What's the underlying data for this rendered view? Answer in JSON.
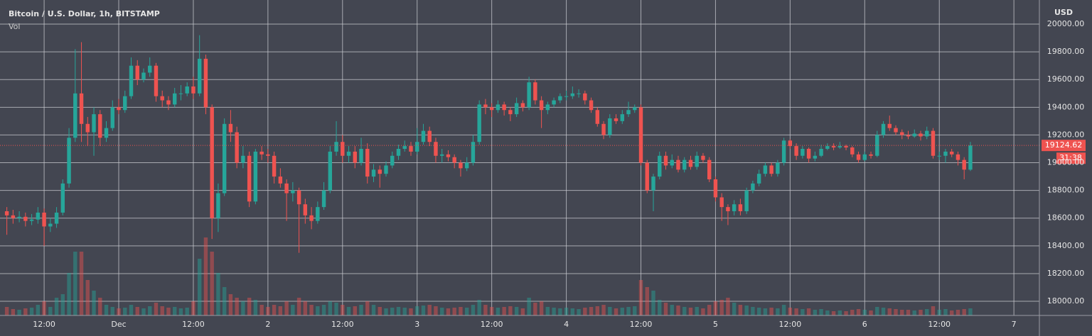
{
  "chart_data": {
    "type": "candlestick",
    "title": "Bitcoin / U.S. Dollar, 1h, BITSTAMP",
    "volume_label": "Vol",
    "currency": "USD",
    "up_color": "#26a69a",
    "down_color": "#ef5350",
    "grid": true,
    "last_price": 19124.62,
    "countdown": "31:38",
    "ylim": [
      17898,
      20174
    ],
    "yticks": [
      {
        "value": 18000,
        "label": "18000.00"
      },
      {
        "value": 18200,
        "label": "18200.00"
      },
      {
        "value": 18400,
        "label": "18400.00"
      },
      {
        "value": 18600,
        "label": "18600.00"
      },
      {
        "value": 18800,
        "label": "18800.00"
      },
      {
        "value": 19000,
        "label": "19000.00"
      },
      {
        "value": 19200,
        "label": "19200.00"
      },
      {
        "value": 19400,
        "label": "19400.00"
      },
      {
        "value": 19600,
        "label": "19600.00"
      },
      {
        "value": 19800,
        "label": "19800.00"
      },
      {
        "value": 20000,
        "label": "20000.00"
      }
    ],
    "xlim": [
      -19.1,
      148.1
    ],
    "xticks": [
      {
        "value": -12,
        "label": "12:00"
      },
      {
        "value": 0,
        "label": "Dec"
      },
      {
        "value": 12,
        "label": "12:00"
      },
      {
        "value": 24,
        "label": "2"
      },
      {
        "value": 36,
        "label": "12:00"
      },
      {
        "value": 48,
        "label": "3"
      },
      {
        "value": 60,
        "label": "12:00"
      },
      {
        "value": 72,
        "label": "4"
      },
      {
        "value": 84,
        "label": "12:00"
      },
      {
        "value": 96,
        "label": "5"
      },
      {
        "value": 108,
        "label": "12:00"
      },
      {
        "value": 120,
        "label": "6"
      },
      {
        "value": 132,
        "label": "12:00"
      },
      {
        "value": 144,
        "label": "7"
      }
    ],
    "x": [
      -18,
      -17,
      -16,
      -15,
      -14,
      -13,
      -12,
      -11,
      -10,
      -9,
      -8,
      -7,
      -6,
      -5,
      -4,
      -3,
      -2,
      -1,
      0,
      1,
      2,
      3,
      4,
      5,
      6,
      7,
      8,
      9,
      10,
      11,
      12,
      13,
      14,
      15,
      16,
      17,
      18,
      19,
      20,
      21,
      22,
      23,
      24,
      25,
      26,
      27,
      28,
      29,
      30,
      31,
      32,
      33,
      34,
      35,
      36,
      37,
      38,
      39,
      40,
      41,
      42,
      43,
      44,
      45,
      46,
      47,
      48,
      49,
      50,
      51,
      52,
      53,
      54,
      55,
      56,
      57,
      58,
      59,
      60,
      61,
      62,
      63,
      64,
      65,
      66,
      67,
      68,
      69,
      70,
      71,
      72,
      73,
      74,
      75,
      76,
      77,
      78,
      79,
      80,
      81,
      82,
      83,
      84,
      85,
      86,
      87,
      88,
      89,
      90,
      91,
      92,
      93,
      94,
      95,
      96,
      97,
      98,
      99,
      100,
      101,
      102,
      103,
      104,
      105,
      106,
      107,
      108,
      109,
      110,
      111,
      112,
      113,
      114,
      115,
      116,
      117,
      118,
      119,
      120,
      121,
      122,
      123,
      124,
      125,
      126,
      127,
      128,
      129,
      130,
      131,
      132,
      133,
      134,
      135,
      136,
      137
    ],
    "candles": [
      [
        18650,
        18680,
        18480,
        18620,
        120
      ],
      [
        18620,
        18660,
        18560,
        18600,
        90
      ],
      [
        18600,
        18650,
        18570,
        18610,
        80
      ],
      [
        18610,
        18640,
        18540,
        18580,
        100
      ],
      [
        18580,
        18630,
        18550,
        18590,
        110
      ],
      [
        18590,
        18680,
        18560,
        18640,
        150
      ],
      [
        18640,
        18670,
        18400,
        18540,
        200
      ],
      [
        18540,
        18600,
        18500,
        18560,
        120
      ],
      [
        18560,
        18680,
        18530,
        18640,
        250
      ],
      [
        18640,
        18880,
        18620,
        18850,
        300
      ],
      [
        18850,
        19250,
        18820,
        19180,
        600
      ],
      [
        19180,
        19820,
        19150,
        19500,
        900
      ],
      [
        19500,
        19870,
        19150,
        19280,
        900
      ],
      [
        19280,
        19330,
        19120,
        19220,
        500
      ],
      [
        19220,
        19400,
        19050,
        19350,
        350
      ],
      [
        19350,
        19380,
        19120,
        19180,
        250
      ],
      [
        19180,
        19300,
        19150,
        19250,
        150
      ],
      [
        19250,
        19450,
        19230,
        19400,
        120
      ],
      [
        19400,
        19460,
        19350,
        19380,
        100
      ],
      [
        19380,
        19520,
        19360,
        19480,
        110
      ],
      [
        19480,
        19760,
        19460,
        19700,
        150
      ],
      [
        19700,
        19740,
        19560,
        19600,
        120
      ],
      [
        19600,
        19680,
        19580,
        19650,
        100
      ],
      [
        19650,
        19760,
        19620,
        19700,
        130
      ],
      [
        19700,
        19720,
        19440,
        19480,
        180
      ],
      [
        19480,
        19520,
        19400,
        19450,
        130
      ],
      [
        19450,
        19480,
        19380,
        19420,
        110
      ],
      [
        19420,
        19540,
        19400,
        19500,
        120
      ],
      [
        19500,
        19560,
        19450,
        19500,
        100
      ],
      [
        19500,
        19580,
        19480,
        19550,
        110
      ],
      [
        19550,
        19620,
        19460,
        19500,
        200
      ],
      [
        19500,
        19920,
        19480,
        19750,
        800
      ],
      [
        19750,
        19780,
        19350,
        19400,
        1100
      ],
      [
        19400,
        19420,
        18450,
        18600,
        900
      ],
      [
        18600,
        18850,
        18500,
        18780,
        600
      ],
      [
        18780,
        19320,
        18760,
        19280,
        400
      ],
      [
        19280,
        19380,
        19150,
        19220,
        300
      ],
      [
        19220,
        19260,
        18960,
        19000,
        250
      ],
      [
        19000,
        19120,
        18960,
        19050,
        200
      ],
      [
        19050,
        19080,
        18680,
        18720,
        250
      ],
      [
        18720,
        19100,
        18700,
        19080,
        220
      ],
      [
        19080,
        19120,
        19020,
        19060,
        150
      ],
      [
        19060,
        19100,
        19000,
        19050,
        120
      ],
      [
        19050,
        19080,
        18850,
        18900,
        150
      ],
      [
        18900,
        18960,
        18820,
        18850,
        130
      ],
      [
        18850,
        18880,
        18580,
        18780,
        200
      ],
      [
        18780,
        18860,
        18720,
        18800,
        150
      ],
      [
        18800,
        18820,
        18350,
        18700,
        250
      ],
      [
        18700,
        18740,
        18560,
        18620,
        200
      ],
      [
        18620,
        18680,
        18520,
        18580,
        150
      ],
      [
        18580,
        18720,
        18560,
        18680,
        130
      ],
      [
        18680,
        18860,
        18660,
        18800,
        150
      ],
      [
        18800,
        19120,
        18780,
        19080,
        200
      ],
      [
        19080,
        19300,
        19050,
        19150,
        180
      ],
      [
        19150,
        19200,
        19000,
        19050,
        150
      ],
      [
        19050,
        19120,
        19000,
        19080,
        120
      ],
      [
        19080,
        19120,
        18960,
        19000,
        130
      ],
      [
        19000,
        19180,
        18980,
        19100,
        150
      ],
      [
        19100,
        19140,
        18850,
        18900,
        200
      ],
      [
        18900,
        18990,
        18860,
        18950,
        150
      ],
      [
        18950,
        18980,
        18820,
        18920,
        120
      ],
      [
        18920,
        19010,
        18900,
        18980,
        100
      ],
      [
        18980,
        19080,
        18960,
        19050,
        110
      ],
      [
        19050,
        19130,
        19020,
        19100,
        120
      ],
      [
        19100,
        19160,
        19080,
        19120,
        110
      ],
      [
        19120,
        19150,
        19050,
        19080,
        100
      ],
      [
        19080,
        19250,
        19060,
        19150,
        130
      ],
      [
        19150,
        19280,
        19130,
        19230,
        140
      ],
      [
        19230,
        19260,
        19120,
        19150,
        150
      ],
      [
        19150,
        19180,
        19000,
        19050,
        130
      ],
      [
        19050,
        19100,
        19000,
        19060,
        110
      ],
      [
        19060,
        19090,
        19010,
        19040,
        100
      ],
      [
        19040,
        19060,
        18960,
        19000,
        110
      ],
      [
        19000,
        19020,
        18900,
        18960,
        120
      ],
      [
        18960,
        19040,
        18940,
        19000,
        110
      ],
      [
        19000,
        19200,
        18980,
        19150,
        150
      ],
      [
        19150,
        19450,
        19130,
        19420,
        220
      ],
      [
        19420,
        19460,
        19350,
        19400,
        150
      ],
      [
        19400,
        19430,
        19330,
        19380,
        120
      ],
      [
        19380,
        19450,
        19360,
        19420,
        110
      ],
      [
        19420,
        19440,
        19340,
        19380,
        120
      ],
      [
        19380,
        19400,
        19300,
        19350,
        130
      ],
      [
        19350,
        19470,
        19330,
        19430,
        120
      ],
      [
        19430,
        19450,
        19370,
        19400,
        100
      ],
      [
        19400,
        19620,
        19380,
        19580,
        250
      ],
      [
        19580,
        19600,
        19420,
        19450,
        180
      ],
      [
        19450,
        19480,
        19250,
        19380,
        200
      ],
      [
        19380,
        19440,
        19350,
        19420,
        120
      ],
      [
        19420,
        19470,
        19400,
        19450,
        110
      ],
      [
        19450,
        19500,
        19430,
        19480,
        100
      ],
      [
        19480,
        19520,
        19450,
        19480,
        110
      ],
      [
        19480,
        19550,
        19460,
        19500,
        100
      ],
      [
        19500,
        19530,
        19470,
        19500,
        90
      ],
      [
        19500,
        19520,
        19420,
        19450,
        110
      ],
      [
        19450,
        19470,
        19360,
        19380,
        120
      ],
      [
        19380,
        19400,
        19260,
        19280,
        130
      ],
      [
        19280,
        19300,
        19170,
        19200,
        150
      ],
      [
        19200,
        19350,
        19180,
        19320,
        120
      ],
      [
        19320,
        19350,
        19280,
        19300,
        100
      ],
      [
        19300,
        19380,
        19280,
        19350,
        110
      ],
      [
        19350,
        19440,
        19330,
        19380,
        120
      ],
      [
        19380,
        19420,
        19360,
        19400,
        130
      ],
      [
        19400,
        19420,
        18980,
        19000,
        500
      ],
      [
        19000,
        19020,
        18780,
        18800,
        400
      ],
      [
        18800,
        18920,
        18650,
        18900,
        350
      ],
      [
        18900,
        19080,
        18880,
        19050,
        220
      ],
      [
        19050,
        19080,
        18950,
        18980,
        180
      ],
      [
        18980,
        19060,
        18960,
        19020,
        150
      ],
      [
        19020,
        19050,
        18930,
        18950,
        140
      ],
      [
        18950,
        19040,
        18930,
        19020,
        120
      ],
      [
        19020,
        19050,
        18950,
        18970,
        110
      ],
      [
        18970,
        19080,
        18950,
        19050,
        120
      ],
      [
        19050,
        19070,
        19000,
        19020,
        100
      ],
      [
        19020,
        19040,
        18860,
        18880,
        150
      ],
      [
        18880,
        18900,
        18720,
        18750,
        200
      ],
      [
        18750,
        18780,
        18580,
        18680,
        220
      ],
      [
        18680,
        18700,
        18550,
        18650,
        250
      ],
      [
        18650,
        18730,
        18620,
        18700,
        180
      ],
      [
        18700,
        18740,
        18620,
        18650,
        150
      ],
      [
        18650,
        18820,
        18630,
        18800,
        140
      ],
      [
        18800,
        18870,
        18780,
        18850,
        120
      ],
      [
        18850,
        18950,
        18830,
        18920,
        110
      ],
      [
        18920,
        19000,
        18900,
        18980,
        100
      ],
      [
        18980,
        19000,
        18900,
        18920,
        110
      ],
      [
        18920,
        19020,
        18900,
        19000,
        100
      ],
      [
        19000,
        19180,
        18980,
        19160,
        150
      ],
      [
        19160,
        19170,
        19100,
        19120,
        110
      ],
      [
        19120,
        19140,
        19020,
        19050,
        100
      ],
      [
        19050,
        19120,
        19030,
        19100,
        90
      ],
      [
        19100,
        19110,
        19000,
        19030,
        100
      ],
      [
        19030,
        19080,
        19010,
        19050,
        80
      ],
      [
        19050,
        19130,
        19040,
        19100,
        90
      ],
      [
        19100,
        19140,
        19090,
        19120,
        70
      ],
      [
        19120,
        19140,
        19090,
        19110,
        60
      ],
      [
        19110,
        19150,
        19100,
        19120,
        70
      ],
      [
        19120,
        19130,
        19090,
        19110,
        60
      ],
      [
        19110,
        19120,
        19040,
        19060,
        80
      ],
      [
        19060,
        19080,
        19000,
        19020,
        90
      ],
      [
        19020,
        19080,
        19010,
        19060,
        80
      ],
      [
        19060,
        19080,
        19030,
        19050,
        70
      ],
      [
        19050,
        19230,
        19040,
        19200,
        120
      ],
      [
        19200,
        19300,
        19180,
        19280,
        110
      ],
      [
        19280,
        19340,
        19230,
        19250,
        100
      ],
      [
        19250,
        19270,
        19200,
        19220,
        90
      ],
      [
        19220,
        19240,
        19170,
        19200,
        80
      ],
      [
        19200,
        19230,
        19170,
        19190,
        80
      ],
      [
        19190,
        19240,
        19180,
        19210,
        70
      ],
      [
        19210,
        19230,
        19160,
        19190,
        80
      ],
      [
        19190,
        19260,
        19170,
        19230,
        90
      ],
      [
        19230,
        19250,
        19030,
        19050,
        130
      ],
      [
        19050,
        19080,
        19020,
        19050,
        80
      ],
      [
        19050,
        19100,
        19000,
        19080,
        90
      ],
      [
        19080,
        19100,
        19040,
        19060,
        70
      ],
      [
        19060,
        19080,
        18980,
        19020,
        80
      ],
      [
        19020,
        19040,
        18880,
        18950,
        90
      ],
      [
        18950,
        19150,
        18940,
        19124.62,
        100
      ]
    ]
  }
}
